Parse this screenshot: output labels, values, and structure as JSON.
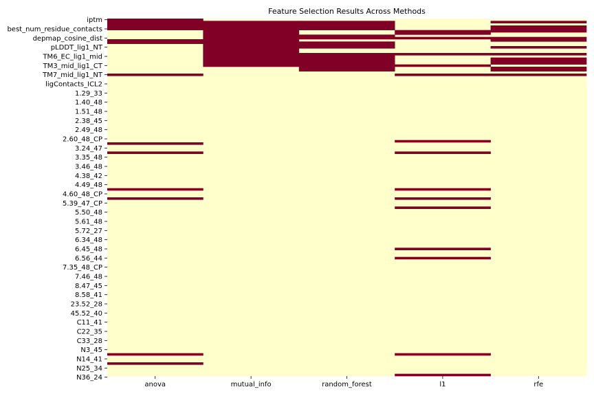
{
  "chart_data": {
    "type": "heatmap",
    "title": "Feature Selection Results Across Methods",
    "xlabel": "",
    "ylabel": "",
    "x_categories": [
      "anova",
      "mutual_info",
      "random_forest",
      "l1",
      "rfe"
    ],
    "y_tick_labels": [
      "iptm",
      "best_num_residue_contacts",
      "depmap_cosine_dist",
      "pLDDT_lig1_NT",
      "TM6_EC_lig1_mid",
      "TM3_mid_lig1_CT",
      "TM7_mid_lig1_NT",
      "ligContacts_ICL2",
      "1.29_33",
      "1.40_48",
      "1.51_48",
      "2.38_45",
      "2.49_48",
      "2.60_48_CP",
      "3.24_47",
      "3.35_48",
      "3.46_48",
      "4.38_42",
      "4.49_48",
      "4.60_48_CP",
      "5.39_47_CP",
      "5.50_48",
      "5.61_48",
      "5.72_27",
      "6.34_48",
      "6.45_48",
      "6.56_44",
      "7.35_48_CP",
      "7.46_48",
      "8.47_45",
      "8.58_41",
      "23.52_28",
      "45.52_40",
      "C11_41",
      "C22_35",
      "C33_28",
      "N3_45",
      "N14_41",
      "N25_34",
      "N36_24"
    ],
    "n_rows": 156,
    "tick_every": 4,
    "value_levels": [
      0,
      1
    ],
    "colors": {
      "not_selected": "#ffffcc",
      "selected": "#800026",
      "tick": "#000000"
    },
    "selected": {
      "anova": [
        0,
        1,
        2,
        3,
        4,
        9,
        10,
        24,
        54,
        58,
        74,
        78,
        146,
        150
      ],
      "mutual_info": [
        1,
        2,
        3,
        4,
        5,
        6,
        7,
        8,
        9,
        10,
        11,
        12,
        13,
        14,
        15,
        16,
        17,
        18,
        19,
        20
      ],
      "random_forest": [
        1,
        2,
        3,
        4,
        7,
        8,
        10,
        11,
        12,
        15,
        16,
        17,
        18,
        19,
        20,
        21,
        22
      ],
      "l1": [
        5,
        6,
        8,
        15,
        20,
        24,
        53,
        58,
        74,
        78,
        82,
        100,
        104,
        146,
        155
      ],
      "rfe": [
        1,
        3,
        4,
        5,
        8,
        9,
        12,
        15,
        17,
        18,
        19,
        21,
        22,
        24
      ]
    }
  }
}
